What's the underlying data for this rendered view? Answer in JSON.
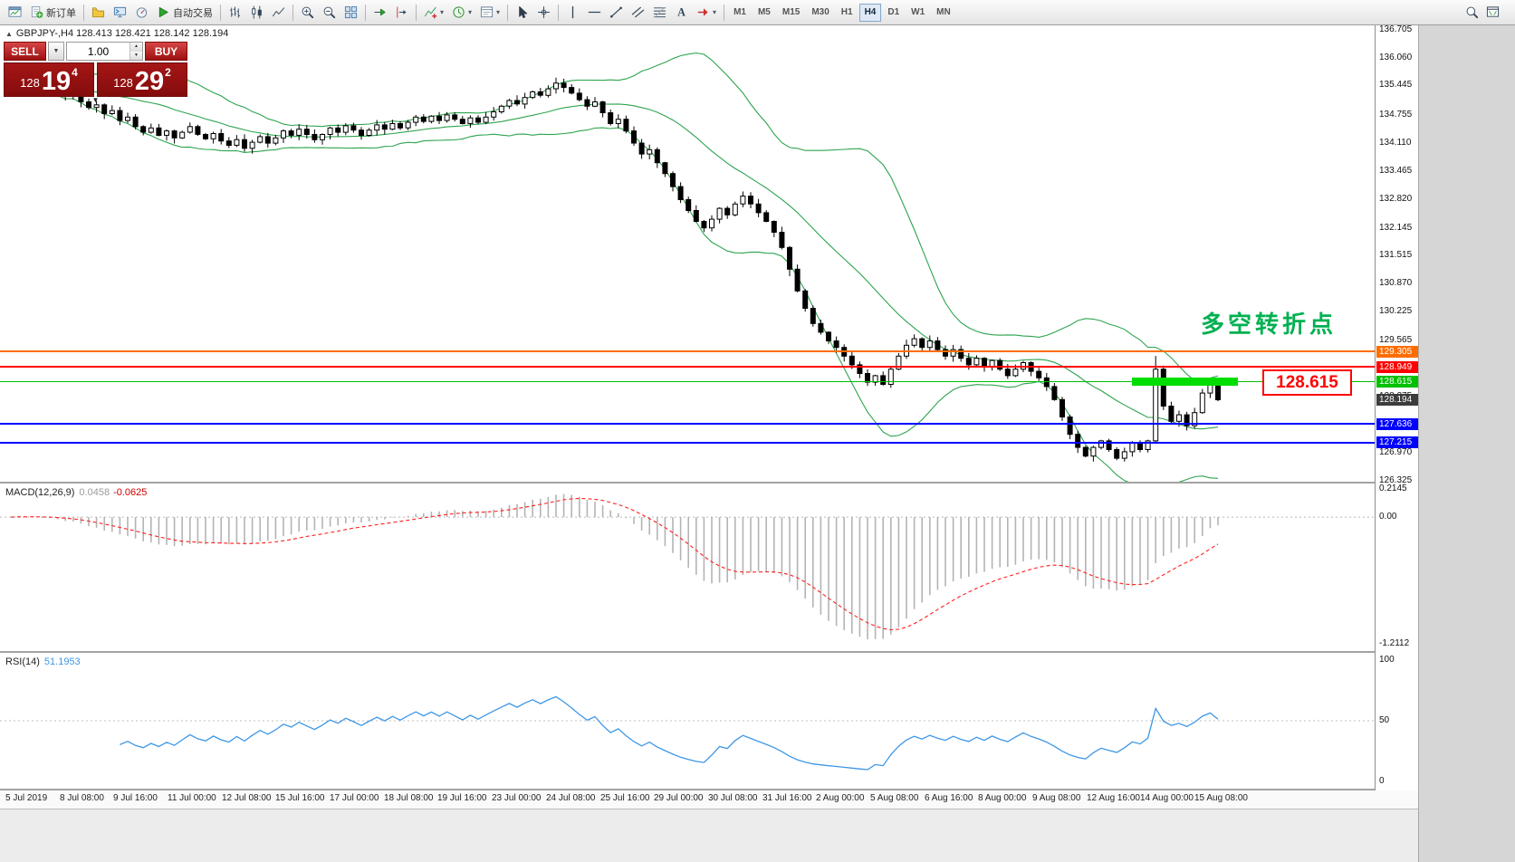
{
  "toolbar": {
    "new_order_label": "新订单",
    "autotrading_label": "自动交易",
    "timeframes": [
      "M1",
      "M5",
      "M15",
      "M30",
      "H1",
      "H4",
      "D1",
      "W1",
      "MN"
    ],
    "active_timeframe": "H4",
    "groups": [
      [
        {
          "name": "new-chart-icon"
        },
        {
          "name": "new-order-button",
          "icon": "new-order-icon",
          "label_key": "new_order_label"
        }
      ],
      [
        {
          "name": "profiles-icon"
        },
        {
          "name": "terminal-icon"
        },
        {
          "name": "strategy-tester-icon"
        },
        {
          "name": "autotrading-button",
          "icon": "play-icon",
          "label_key": "autotrading_label"
        }
      ],
      [
        {
          "name": "bar-chart-icon"
        },
        {
          "name": "candlestick-chart-icon"
        },
        {
          "name": "line-chart-icon"
        }
      ],
      [
        {
          "name": "zoom-in-icon"
        },
        {
          "name": "zoom-out-icon"
        },
        {
          "name": "tile-windows-icon"
        }
      ],
      [
        {
          "name": "auto-scroll-icon"
        },
        {
          "name": "chart-shift-icon"
        }
      ],
      [
        {
          "name": "indicators-icon",
          "dropdown": true
        },
        {
          "name": "periods-icon",
          "dropdown": true
        },
        {
          "name": "templates-icon",
          "dropdown": true
        }
      ],
      [
        {
          "name": "cursor-icon"
        },
        {
          "name": "crosshair-icon"
        }
      ],
      [
        {
          "name": "vertical-line-icon"
        },
        {
          "name": "horizontal-line-icon"
        },
        {
          "name": "trendline-icon"
        },
        {
          "name": "equidistant-channel-icon"
        },
        {
          "name": "fibonacci-icon"
        },
        {
          "name": "text-icon"
        },
        {
          "name": "arrows-icon",
          "dropdown": true
        }
      ]
    ],
    "right_icons": [
      {
        "name": "search-icon"
      },
      {
        "name": "fullscreen-icon"
      }
    ]
  },
  "chart": {
    "title": "GBPJPY-,H4  128.413 128.421 128.142 128.194",
    "annotation": "多空转折点",
    "price_box_label": "128.615",
    "colors": {
      "bollinger": "#2da44e",
      "candle_up": "#ffffff",
      "candle_down": "#000000",
      "annotation": "#00b050",
      "price_box": "#ff0000",
      "highlight": "#00dd00"
    }
  },
  "trade_panel": {
    "sell_label": "SELL",
    "buy_label": "BUY",
    "volume": "1.00",
    "bid": {
      "small": "128",
      "big": "19",
      "sup": "4"
    },
    "ask": {
      "small": "128",
      "big": "29",
      "sup": "2"
    }
  },
  "price_axis": {
    "labels": [
      "136.705",
      "136.060",
      "135.445",
      "134.755",
      "134.110",
      "133.465",
      "132.820",
      "132.145",
      "131.515",
      "130.870",
      "130.225",
      "129.565",
      "128.920",
      "128.275",
      "127.630",
      "126.970",
      "126.325"
    ]
  },
  "levels": [
    {
      "label": "129.305",
      "price": 129.305,
      "color": "#ff6d00",
      "width": 2
    },
    {
      "label": "128.949",
      "price": 128.949,
      "color": "#ff0000",
      "width": 2
    },
    {
      "label": "128.615",
      "price": 128.615,
      "color": "#00c000",
      "width": 1
    },
    {
      "label": "128.194",
      "price": 128.194,
      "color": "#3c3c3c",
      "width": 0
    },
    {
      "label": "127.636",
      "price": 127.636,
      "color": "#0000ff",
      "width": 2
    },
    {
      "label": "127.215",
      "price": 127.215,
      "color": "#0000ff",
      "width": 2
    }
  ],
  "highlight": {
    "price": 128.615
  },
  "macd": {
    "name": "MACD(12,26,9)",
    "value_main": "0.0458",
    "value_signal": "-0.0625",
    "axis": [
      "0.2145",
      "0.00",
      "-1.2112"
    ]
  },
  "rsi": {
    "name": "RSI(14)",
    "value": "51.1953",
    "axis": [
      "100",
      "50",
      "0"
    ]
  },
  "time_axis": {
    "labels": [
      "5 Jul 2019",
      "8 Jul 08:00",
      "9 Jul 16:00",
      "11 Jul 00:00",
      "12 Jul 08:00",
      "15 Jul 16:00",
      "17 Jul 00:00",
      "18 Jul 08:00",
      "19 Jul 16:00",
      "23 Jul 00:00",
      "24 Jul 08:00",
      "25 Jul 16:00",
      "29 Jul 00:00",
      "30 Jul 08:00",
      "31 Jul 16:00",
      "2 Aug 00:00",
      "5 Aug 08:00",
      "6 Aug 16:00",
      "8 Aug 00:00",
      "9 Aug 08:00",
      "12 Aug 16:00",
      "14 Aug 00:00",
      "15 Aug 08:00"
    ]
  },
  "chart_data": {
    "type": "candlestick",
    "symbol": "GBPJPY-",
    "timeframe": "H4",
    "y_range": [
      126.31,
      136.81
    ],
    "bollinger": {
      "period": 20,
      "deviation": 2
    },
    "indicators": [
      {
        "type": "MACD",
        "params": [
          12,
          26,
          9
        ]
      },
      {
        "type": "RSI",
        "params": [
          14
        ]
      }
    ],
    "closes": [
      135.45,
      135.6,
      135.38,
      135.52,
      135.3,
      135.42,
      135.25,
      135.18,
      135.28,
      135.05,
      134.92,
      134.98,
      134.78,
      134.85,
      134.62,
      134.7,
      134.48,
      134.35,
      134.45,
      134.28,
      134.38,
      134.22,
      134.35,
      134.48,
      134.3,
      134.2,
      134.32,
      134.15,
      134.05,
      134.18,
      133.98,
      134.12,
      134.25,
      134.1,
      134.22,
      134.38,
      134.28,
      134.42,
      134.3,
      134.18,
      134.3,
      134.45,
      134.35,
      134.5,
      134.4,
      134.28,
      134.4,
      134.52,
      134.42,
      134.55,
      134.45,
      134.58,
      134.7,
      134.6,
      134.72,
      134.62,
      134.75,
      134.65,
      134.55,
      134.68,
      134.58,
      134.7,
      134.82,
      134.95,
      135.08,
      135.0,
      135.15,
      135.28,
      135.2,
      135.35,
      135.48,
      135.38,
      135.25,
      135.1,
      134.95,
      135.05,
      134.8,
      134.55,
      134.65,
      134.38,
      134.1,
      133.85,
      133.95,
      133.65,
      133.4,
      133.1,
      132.8,
      132.55,
      132.3,
      132.15,
      132.35,
      132.6,
      132.45,
      132.7,
      132.88,
      132.7,
      132.5,
      132.3,
      132.05,
      131.7,
      131.2,
      130.7,
      130.3,
      129.95,
      129.75,
      129.55,
      129.4,
      129.2,
      129.0,
      128.8,
      128.6,
      128.75,
      128.55,
      128.9,
      129.2,
      129.45,
      129.6,
      129.4,
      129.55,
      129.35,
      129.2,
      129.35,
      129.15,
      129.0,
      129.15,
      128.95,
      129.1,
      128.9,
      128.75,
      128.9,
      129.05,
      128.85,
      128.7,
      128.5,
      128.2,
      127.8,
      127.4,
      127.1,
      126.9,
      127.1,
      127.25,
      127.05,
      126.85,
      127.0,
      127.2,
      127.05,
      127.25,
      128.9,
      128.05,
      127.7,
      127.85,
      127.6,
      127.9,
      128.35,
      128.62,
      128.194
    ]
  }
}
